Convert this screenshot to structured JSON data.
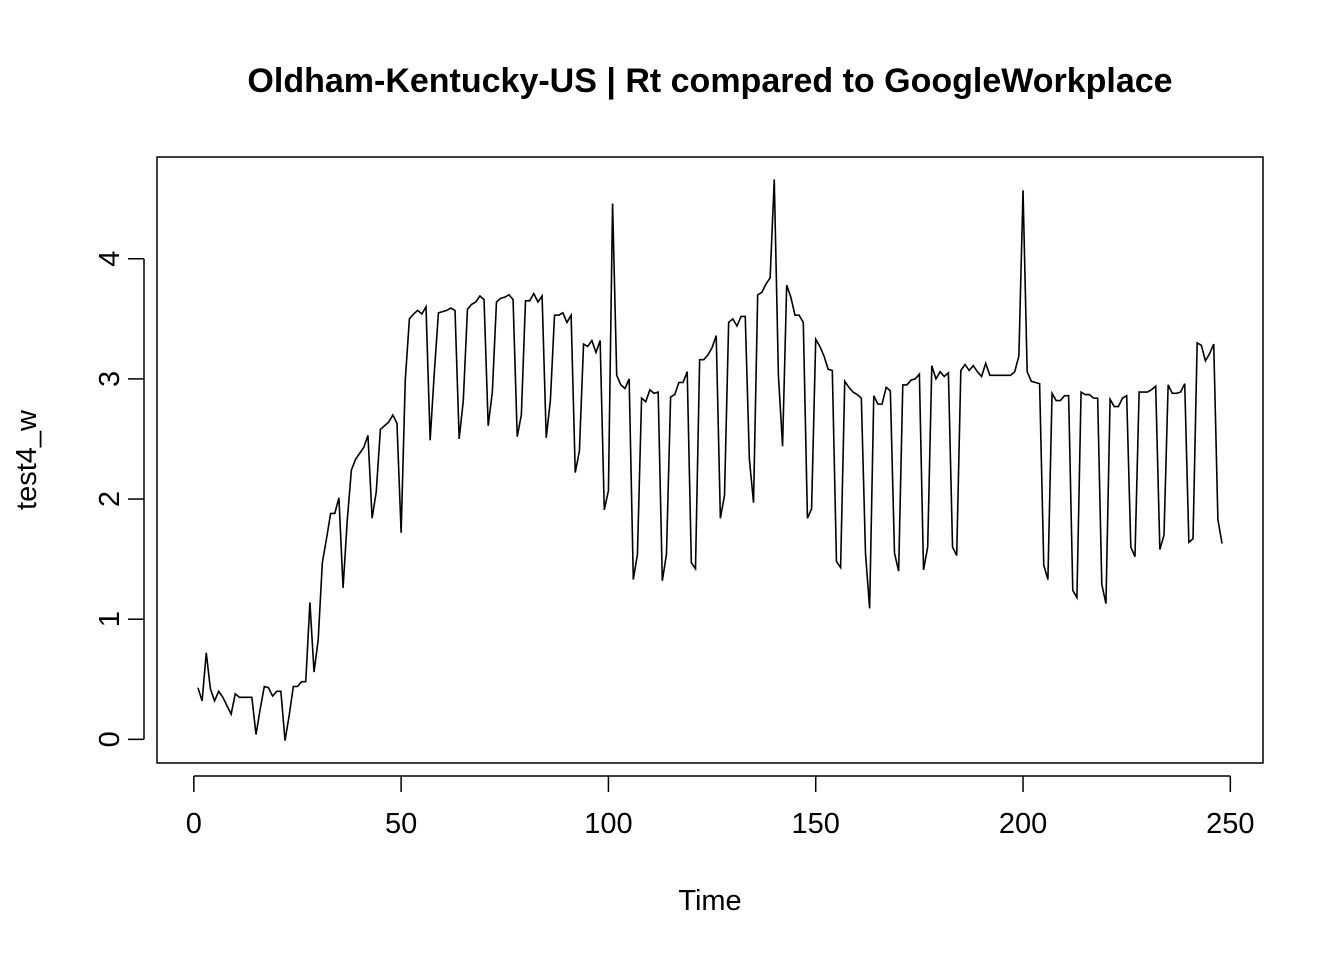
{
  "chart_data": {
    "type": "line",
    "title": "Oldham-Kentucky-US | Rt compared to GoogleWorkplace",
    "xlabel": "Time",
    "ylabel": "test4_w",
    "xlim": [
      1,
      248
    ],
    "ylim": [
      -0.01,
      4.66
    ],
    "x_ticks": [
      0,
      50,
      100,
      150,
      200,
      250
    ],
    "y_ticks": [
      0,
      1,
      2,
      3,
      4
    ],
    "grid": false,
    "line_color": "#000000",
    "series": [
      {
        "x_start": 1,
        "values": [
          0.43,
          0.32,
          0.72,
          0.42,
          0.32,
          0.4,
          0.35,
          0.28,
          0.21,
          0.38,
          0.35,
          0.35,
          0.35,
          0.35,
          0.04,
          0.25,
          0.44,
          0.43,
          0.36,
          0.4,
          0.4,
          -0.01,
          0.2,
          0.44,
          0.44,
          0.48,
          0.48,
          1.14,
          0.56,
          0.83,
          1.47,
          1.67,
          1.88,
          1.88,
          2.01,
          1.26,
          1.82,
          2.24,
          2.33,
          2.38,
          2.43,
          2.53,
          1.84,
          2.06,
          2.58,
          2.61,
          2.64,
          2.7,
          2.63,
          1.72,
          2.99,
          3.5,
          3.54,
          3.57,
          3.54,
          3.6,
          2.49,
          3.05,
          3.55,
          3.56,
          3.57,
          3.59,
          3.57,
          2.5,
          2.82,
          3.58,
          3.62,
          3.64,
          3.69,
          3.66,
          2.61,
          2.89,
          3.64,
          3.67,
          3.68,
          3.7,
          3.66,
          2.52,
          2.7,
          3.65,
          3.65,
          3.71,
          3.64,
          3.69,
          2.51,
          2.82,
          3.53,
          3.53,
          3.55,
          3.47,
          3.53,
          2.22,
          2.4,
          3.29,
          3.27,
          3.32,
          3.22,
          3.32,
          1.91,
          2.07,
          4.46,
          3.03,
          2.95,
          2.92,
          3.0,
          1.33,
          1.54,
          2.84,
          2.81,
          2.91,
          2.88,
          2.89,
          1.32,
          1.54,
          2.85,
          2.87,
          2.97,
          2.97,
          3.06,
          1.47,
          1.42,
          3.16,
          3.16,
          3.2,
          3.26,
          3.36,
          1.84,
          2.03,
          3.47,
          3.5,
          3.44,
          3.52,
          3.52,
          2.33,
          1.97,
          3.7,
          3.72,
          3.79,
          3.84,
          4.66,
          3.03,
          2.44,
          3.78,
          3.68,
          3.53,
          3.53,
          3.47,
          1.84,
          1.92,
          3.33,
          3.27,
          3.19,
          3.08,
          3.07,
          1.48,
          1.43,
          2.98,
          2.93,
          2.89,
          2.87,
          2.84,
          1.55,
          1.09,
          2.86,
          2.79,
          2.79,
          2.93,
          2.9,
          1.55,
          1.4,
          2.95,
          2.95,
          2.99,
          3.0,
          3.04,
          1.41,
          1.6,
          3.11,
          3.0,
          3.06,
          3.02,
          3.05,
          1.6,
          1.53,
          3.07,
          3.12,
          3.07,
          3.11,
          3.06,
          3.02,
          3.13,
          3.03,
          3.03,
          3.03,
          3.03,
          3.03,
          3.03,
          3.06,
          3.19,
          4.57,
          3.06,
          2.98,
          2.97,
          2.96,
          1.45,
          1.33,
          2.88,
          2.82,
          2.82,
          2.86,
          2.86,
          1.24,
          1.18,
          2.89,
          2.87,
          2.87,
          2.84,
          2.84,
          1.29,
          1.13,
          2.83,
          2.77,
          2.77,
          2.84,
          2.86,
          1.6,
          1.52,
          2.89,
          2.89,
          2.89,
          2.91,
          2.94,
          1.58,
          1.7,
          2.95,
          2.88,
          2.88,
          2.89,
          2.96,
          1.64,
          1.67,
          3.3,
          3.28,
          3.15,
          3.21,
          3.29,
          1.83,
          1.63
        ]
      }
    ]
  }
}
